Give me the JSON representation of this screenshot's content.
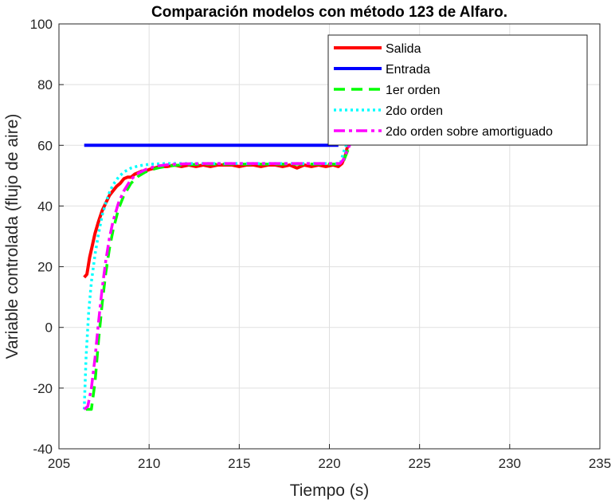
{
  "chart_data": {
    "type": "line",
    "title": "Comparación modelos con método 123 de Alfaro.",
    "xlabel": "Tiempo (s)",
    "ylabel": "Variable controlada (flujo de aire)",
    "xlim": [
      205,
      235
    ],
    "ylim": [
      -40,
      100
    ],
    "xticks": [
      205,
      210,
      215,
      220,
      225,
      230,
      235
    ],
    "yticks": [
      -40,
      -20,
      0,
      20,
      40,
      60,
      80,
      100
    ],
    "grid": true,
    "legend_position": "top-right",
    "series": [
      {
        "name": "Salida",
        "color": "#ff0000",
        "style": "solid",
        "x": [
          206.4,
          206.55,
          206.7,
          206.85,
          207.0,
          207.2,
          207.4,
          207.6,
          207.8,
          208.0,
          208.2,
          208.4,
          208.6,
          208.8,
          209.0,
          209.2,
          209.4,
          209.6,
          209.8,
          210.0,
          210.3,
          210.6,
          211.0,
          211.4,
          211.8,
          212.2,
          212.6,
          213.0,
          213.4,
          213.8,
          214.2,
          214.6,
          215.0,
          215.4,
          215.8,
          216.2,
          216.6,
          217.0,
          217.4,
          217.8,
          218.2,
          218.6,
          219.0,
          219.4,
          219.8,
          220.2,
          220.5,
          220.7,
          220.9,
          221.05
        ],
        "y": [
          16.5,
          17.5,
          23,
          27,
          31,
          35,
          38.5,
          41,
          43.5,
          45,
          46.5,
          47.5,
          49,
          49.5,
          49.5,
          50.5,
          51,
          51.5,
          51.5,
          52,
          52.5,
          53,
          53,
          53.5,
          53,
          53.5,
          53,
          53.5,
          53,
          53.5,
          53.5,
          53.5,
          53,
          53.5,
          53.5,
          53,
          53.5,
          53.5,
          53,
          53.5,
          52.5,
          53.5,
          53,
          53.5,
          53,
          53.5,
          53,
          54,
          57,
          61
        ]
      },
      {
        "name": "Entrada",
        "color": "#0000ff",
        "style": "solid",
        "x": [
          206.4,
          220.5
        ],
        "y": [
          60,
          60
        ]
      },
      {
        "name": "1er orden",
        "color": "#00ff00",
        "style": "dashed",
        "x": [
          206.5,
          206.8,
          207.0,
          207.2,
          207.4,
          207.6,
          207.8,
          208.0,
          208.3,
          208.6,
          209.0,
          209.4,
          209.8,
          210.2,
          210.6,
          211.0,
          211.5,
          212.0,
          213.0,
          214.0,
          215.0,
          216.0,
          217.0,
          218.0,
          219.0,
          220.0,
          220.6,
          220.8,
          221.0,
          221.2
        ],
        "y": [
          -27,
          -27,
          -18,
          -4,
          8,
          18,
          26,
          32,
          39,
          43.5,
          47.5,
          49.8,
          51.2,
          52.1,
          52.7,
          53.1,
          53.4,
          53.6,
          53.8,
          53.8,
          53.8,
          53.8,
          53.8,
          53.8,
          53.8,
          53.8,
          53.8,
          55,
          58,
          61
        ]
      },
      {
        "name": "2do orden",
        "color": "#00ffff",
        "style": "dotted",
        "x": [
          206.4,
          206.5,
          206.65,
          206.8,
          207.0,
          207.2,
          207.4,
          207.6,
          207.8,
          208.0,
          208.3,
          208.6,
          209.0,
          209.4,
          209.8,
          210.2,
          210.6,
          211.0,
          212.0,
          213.0,
          214.0,
          215.0,
          216.0,
          217.0,
          218.0,
          219.0,
          220.0,
          220.6,
          220.8,
          221.0
        ],
        "y": [
          -27,
          -10,
          5,
          15,
          24,
          31,
          37,
          41,
          44.5,
          47,
          49.5,
          51.2,
          52.5,
          53.2,
          53.6,
          53.8,
          53.9,
          54,
          54,
          54,
          54,
          54,
          54,
          54,
          54,
          54,
          54,
          54,
          58,
          61
        ]
      },
      {
        "name": "2do orden sobre amortiguado",
        "color": "#ff00ff",
        "style": "dashdot",
        "x": [
          206.4,
          206.6,
          206.8,
          207.0,
          207.2,
          207.4,
          207.6,
          207.8,
          208.0,
          208.3,
          208.6,
          209.0,
          209.4,
          209.8,
          210.2,
          210.6,
          211.0,
          211.5,
          212.0,
          213.0,
          214.0,
          215.0,
          216.0,
          217.0,
          218.0,
          219.0,
          220.0,
          220.6,
          220.8,
          221.0,
          221.2
        ],
        "y": [
          -27,
          -26,
          -20,
          -10,
          2,
          13,
          22,
          29.5,
          35,
          41,
          45,
          48.8,
          50.8,
          52,
          52.8,
          53.3,
          53.6,
          53.8,
          53.9,
          54,
          54,
          54,
          54,
          54,
          54,
          54,
          54,
          54,
          55.5,
          58.5,
          61
        ]
      }
    ]
  }
}
